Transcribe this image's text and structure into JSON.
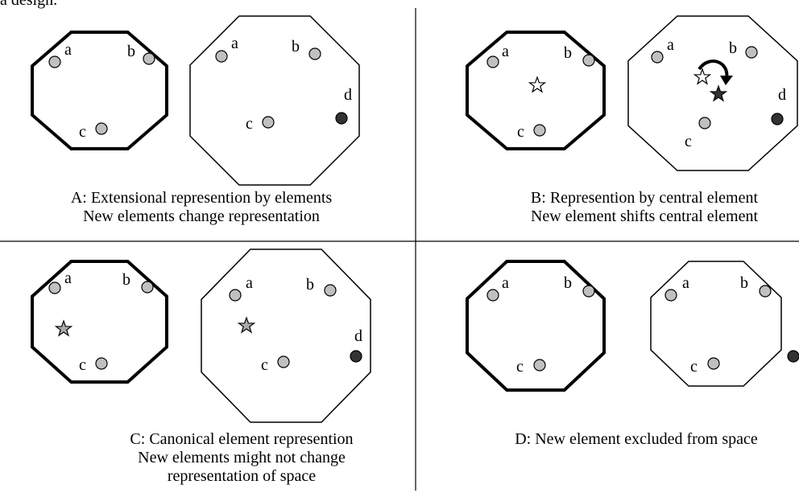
{
  "fragment": "a design.",
  "panels": [
    {
      "caption": [
        "A: Extensional represention by elements",
        "New elements change representation"
      ],
      "left_labels": [
        "a",
        "b",
        "c"
      ],
      "right_labels": [
        "a",
        "b",
        "c",
        "d"
      ]
    },
    {
      "caption": [
        "B: Represention by central element",
        "New element shifts central element"
      ],
      "left_labels": [
        "a",
        "b",
        "c"
      ],
      "right_labels": [
        "a",
        "b",
        "c",
        "d"
      ]
    },
    {
      "caption": [
        "C: Canonical element represention",
        "New elements might not change",
        "representation of space"
      ],
      "left_labels": [
        "a",
        "b",
        "c"
      ],
      "right_labels": [
        "a",
        "b",
        "c",
        "d"
      ]
    },
    {
      "caption": [
        "D: New element excluded from space"
      ],
      "left_labels": [
        "a",
        "b",
        "c"
      ],
      "right_labels": [
        "a",
        "b",
        "c"
      ]
    }
  ]
}
